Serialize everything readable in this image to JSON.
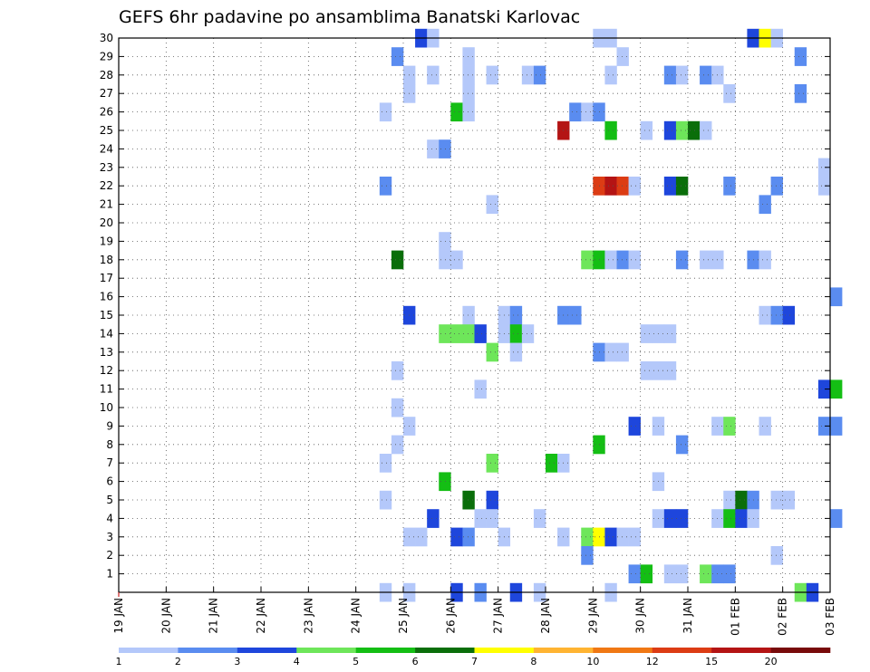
{
  "chart_data": {
    "type": "heatmap",
    "title": "GEFS 6hr padavine po ansamblima Banatski Karlovac",
    "x_tick_labels": [
      "19 JAN",
      "20 JAN",
      "21 JAN",
      "22 JAN",
      "23 JAN",
      "24 JAN",
      "25 JAN",
      "26 JAN",
      "27 JAN",
      "28 JAN",
      "29 JAN",
      "30 JAN",
      "31 JAN",
      "01 FEB",
      "02 FEB",
      "03 FEB"
    ],
    "y_tick_labels": [
      "1",
      "2",
      "3",
      "4",
      "5",
      "6",
      "7",
      "8",
      "9",
      "10",
      "11",
      "12",
      "13",
      "14",
      "15",
      "16",
      "17",
      "18",
      "19",
      "20",
      "21",
      "22",
      "23",
      "24",
      "25",
      "26",
      "27",
      "28",
      "29",
      "30"
    ],
    "xlim_days": [
      0,
      15
    ],
    "ylim": [
      0,
      30
    ],
    "time_step_hours": 6,
    "colorbar": {
      "labels": [
        "1",
        "2",
        "3",
        "4",
        "5",
        "6",
        "7",
        "8",
        "10",
        "12",
        "15",
        "20"
      ],
      "colors": [
        "#b4c8fa",
        "#5a8cf0",
        "#1e46dc",
        "#6ee65a",
        "#14be14",
        "#0a6e0a",
        "#ffff00",
        "#ffb432",
        "#f07814",
        "#dc3c14",
        "#b41414",
        "#780a0a"
      ]
    },
    "cells": [
      {
        "member": 30,
        "t": "2025-01-25T06",
        "level": 3
      },
      {
        "member": 30,
        "t": "2025-01-25T12",
        "level": 1
      },
      {
        "member": 30,
        "t": "2025-01-29T00",
        "level": 1
      },
      {
        "member": 30,
        "t": "2025-01-29T06",
        "level": 1
      },
      {
        "member": 30,
        "t": "2025-02-01T06",
        "level": 3
      },
      {
        "member": 30,
        "t": "2025-02-01T12",
        "level": 7
      },
      {
        "member": 30,
        "t": "2025-02-01T18",
        "level": 1
      },
      {
        "member": 29,
        "t": "2025-01-24T18",
        "level": 2
      },
      {
        "member": 29,
        "t": "2025-01-26T06",
        "level": 1
      },
      {
        "member": 29,
        "t": "2025-01-29T12",
        "level": 1
      },
      {
        "member": 29,
        "t": "2025-02-02T06",
        "level": 2
      },
      {
        "member": 28,
        "t": "2025-01-25T00",
        "level": 1
      },
      {
        "member": 28,
        "t": "2025-01-25T12",
        "level": 1
      },
      {
        "member": 28,
        "t": "2025-01-26T06",
        "level": 1
      },
      {
        "member": 28,
        "t": "2025-01-26T18",
        "level": 1
      },
      {
        "member": 28,
        "t": "2025-01-27T12",
        "level": 1
      },
      {
        "member": 28,
        "t": "2025-01-27T18",
        "level": 2
      },
      {
        "member": 28,
        "t": "2025-01-29T06",
        "level": 1
      },
      {
        "member": 28,
        "t": "2025-01-30T12",
        "level": 2
      },
      {
        "member": 28,
        "t": "2025-01-30T18",
        "level": 1
      },
      {
        "member": 28,
        "t": "2025-01-31T06",
        "level": 2
      },
      {
        "member": 28,
        "t": "2025-01-31T12",
        "level": 1
      },
      {
        "member": 27,
        "t": "2025-01-25T00",
        "level": 1
      },
      {
        "member": 27,
        "t": "2025-01-26T06",
        "level": 1
      },
      {
        "member": 27,
        "t": "2025-01-31T18",
        "level": 1
      },
      {
        "member": 27,
        "t": "2025-02-02T06",
        "level": 2
      },
      {
        "member": 26,
        "t": "2025-01-24T12",
        "level": 1
      },
      {
        "member": 26,
        "t": "2025-01-26T00",
        "level": 5
      },
      {
        "member": 26,
        "t": "2025-01-26T06",
        "level": 1
      },
      {
        "member": 26,
        "t": "2025-01-28T12",
        "level": 2
      },
      {
        "member": 26,
        "t": "2025-01-28T18",
        "level": 1
      },
      {
        "member": 26,
        "t": "2025-01-29T00",
        "level": 2
      },
      {
        "member": 25,
        "t": "2025-01-28T06",
        "level": 11
      },
      {
        "member": 25,
        "t": "2025-01-29T06",
        "level": 5
      },
      {
        "member": 25,
        "t": "2025-01-30T00",
        "level": 1
      },
      {
        "member": 25,
        "t": "2025-01-30T12",
        "level": 3
      },
      {
        "member": 25,
        "t": "2025-01-30T18",
        "level": 4
      },
      {
        "member": 25,
        "t": "2025-01-31T00",
        "level": 6
      },
      {
        "member": 25,
        "t": "2025-01-31T06",
        "level": 1
      },
      {
        "member": 24,
        "t": "2025-01-25T12",
        "level": 1
      },
      {
        "member": 24,
        "t": "2025-01-25T18",
        "level": 2
      },
      {
        "member": 23,
        "t": "2025-02-02T18",
        "level": 1
      },
      {
        "member": 22,
        "t": "2025-01-24T12",
        "level": 2
      },
      {
        "member": 22,
        "t": "2025-01-29T00",
        "level": 10
      },
      {
        "member": 22,
        "t": "2025-01-29T06",
        "level": 11
      },
      {
        "member": 22,
        "t": "2025-01-29T12",
        "level": 10
      },
      {
        "member": 22,
        "t": "2025-01-29T18",
        "level": 1
      },
      {
        "member": 22,
        "t": "2025-01-30T12",
        "level": 3
      },
      {
        "member": 22,
        "t": "2025-01-30T18",
        "level": 6
      },
      {
        "member": 22,
        "t": "2025-01-31T18",
        "level": 2
      },
      {
        "member": 22,
        "t": "2025-02-01T18",
        "level": 2
      },
      {
        "member": 22,
        "t": "2025-02-02T18",
        "level": 1
      },
      {
        "member": 21,
        "t": "2025-01-26T18",
        "level": 1
      },
      {
        "member": 21,
        "t": "2025-02-01T12",
        "level": 2
      },
      {
        "member": 19,
        "t": "2025-01-25T18",
        "level": 1
      },
      {
        "member": 18,
        "t": "2025-01-24T18",
        "level": 6
      },
      {
        "member": 18,
        "t": "2025-01-25T18",
        "level": 1
      },
      {
        "member": 18,
        "t": "2025-01-26T00",
        "level": 1
      },
      {
        "member": 18,
        "t": "2025-01-28T18",
        "level": 4
      },
      {
        "member": 18,
        "t": "2025-01-29T00",
        "level": 5
      },
      {
        "member": 18,
        "t": "2025-01-29T06",
        "level": 1
      },
      {
        "member": 18,
        "t": "2025-01-29T12",
        "level": 2
      },
      {
        "member": 18,
        "t": "2025-01-29T18",
        "level": 1
      },
      {
        "member": 18,
        "t": "2025-01-30T18",
        "level": 2
      },
      {
        "member": 18,
        "t": "2025-01-31T06",
        "level": 1
      },
      {
        "member": 18,
        "t": "2025-01-31T12",
        "level": 1
      },
      {
        "member": 18,
        "t": "2025-02-01T06",
        "level": 2
      },
      {
        "member": 18,
        "t": "2025-02-01T12",
        "level": 1
      },
      {
        "member": 16,
        "t": "2025-02-03T00",
        "level": 2
      },
      {
        "member": 15,
        "t": "2025-01-25T00",
        "level": 3
      },
      {
        "member": 15,
        "t": "2025-01-26T06",
        "level": 1
      },
      {
        "member": 15,
        "t": "2025-01-27T00",
        "level": 1
      },
      {
        "member": 15,
        "t": "2025-01-27T06",
        "level": 2
      },
      {
        "member": 15,
        "t": "2025-01-28T06",
        "level": 2
      },
      {
        "member": 15,
        "t": "2025-01-28T12",
        "level": 2
      },
      {
        "member": 15,
        "t": "2025-02-01T12",
        "level": 1
      },
      {
        "member": 15,
        "t": "2025-02-01T18",
        "level": 2
      },
      {
        "member": 15,
        "t": "2025-02-02T00",
        "level": 3
      },
      {
        "member": 14,
        "t": "2025-01-25T18",
        "level": 4
      },
      {
        "member": 14,
        "t": "2025-01-26T00",
        "level": 4
      },
      {
        "member": 14,
        "t": "2025-01-26T06",
        "level": 4
      },
      {
        "member": 14,
        "t": "2025-01-26T12",
        "level": 3
      },
      {
        "member": 14,
        "t": "2025-01-27T00",
        "level": 1
      },
      {
        "member": 14,
        "t": "2025-01-27T06",
        "level": 5
      },
      {
        "member": 14,
        "t": "2025-01-27T12",
        "level": 1
      },
      {
        "member": 14,
        "t": "2025-01-30T00",
        "level": 1
      },
      {
        "member": 14,
        "t": "2025-01-30T06",
        "level": 1
      },
      {
        "member": 14,
        "t": "2025-01-30T12",
        "level": 1
      },
      {
        "member": 13,
        "t": "2025-01-26T18",
        "level": 4
      },
      {
        "member": 13,
        "t": "2025-01-27T06",
        "level": 1
      },
      {
        "member": 13,
        "t": "2025-01-29T00",
        "level": 2
      },
      {
        "member": 13,
        "t": "2025-01-29T06",
        "level": 1
      },
      {
        "member": 13,
        "t": "2025-01-29T12",
        "level": 1
      },
      {
        "member": 12,
        "t": "2025-01-24T18",
        "level": 1
      },
      {
        "member": 12,
        "t": "2025-01-30T00",
        "level": 1
      },
      {
        "member": 12,
        "t": "2025-01-30T06",
        "level": 1
      },
      {
        "member": 12,
        "t": "2025-01-30T12",
        "level": 1
      },
      {
        "member": 11,
        "t": "2025-01-26T12",
        "level": 1
      },
      {
        "member": 11,
        "t": "2025-02-02T18",
        "level": 3
      },
      {
        "member": 11,
        "t": "2025-02-03T00",
        "level": 5
      },
      {
        "member": 10,
        "t": "2025-01-24T18",
        "level": 1
      },
      {
        "member": 9,
        "t": "2025-01-25T00",
        "level": 1
      },
      {
        "member": 9,
        "t": "2025-01-29T18",
        "level": 3
      },
      {
        "member": 9,
        "t": "2025-01-30T06",
        "level": 1
      },
      {
        "member": 9,
        "t": "2025-01-31T12",
        "level": 1
      },
      {
        "member": 9,
        "t": "2025-01-31T18",
        "level": 4
      },
      {
        "member": 9,
        "t": "2025-02-01T12",
        "level": 1
      },
      {
        "member": 9,
        "t": "2025-02-02T18",
        "level": 2
      },
      {
        "member": 9,
        "t": "2025-02-03T00",
        "level": 2
      },
      {
        "member": 8,
        "t": "2025-01-24T18",
        "level": 1
      },
      {
        "member": 8,
        "t": "2025-01-29T00",
        "level": 5
      },
      {
        "member": 8,
        "t": "2025-01-30T18",
        "level": 2
      },
      {
        "member": 7,
        "t": "2025-01-24T12",
        "level": 1
      },
      {
        "member": 7,
        "t": "2025-01-26T18",
        "level": 4
      },
      {
        "member": 7,
        "t": "2025-01-28T00",
        "level": 5
      },
      {
        "member": 7,
        "t": "2025-01-28T06",
        "level": 1
      },
      {
        "member": 6,
        "t": "2025-01-25T18",
        "level": 5
      },
      {
        "member": 6,
        "t": "2025-01-30T06",
        "level": 1
      },
      {
        "member": 5,
        "t": "2025-01-24T12",
        "level": 1
      },
      {
        "member": 5,
        "t": "2025-01-26T06",
        "level": 6
      },
      {
        "member": 5,
        "t": "2025-01-26T18",
        "level": 3
      },
      {
        "member": 5,
        "t": "2025-01-31T18",
        "level": 1
      },
      {
        "member": 5,
        "t": "2025-02-01T00",
        "level": 6
      },
      {
        "member": 5,
        "t": "2025-02-01T06",
        "level": 2
      },
      {
        "member": 5,
        "t": "2025-02-01T18",
        "level": 1
      },
      {
        "member": 5,
        "t": "2025-02-02T00",
        "level": 1
      },
      {
        "member": 4,
        "t": "2025-01-25T12",
        "level": 3
      },
      {
        "member": 4,
        "t": "2025-01-26T12",
        "level": 1
      },
      {
        "member": 4,
        "t": "2025-01-26T18",
        "level": 1
      },
      {
        "member": 4,
        "t": "2025-01-27T18",
        "level": 1
      },
      {
        "member": 4,
        "t": "2025-01-30T06",
        "level": 1
      },
      {
        "member": 4,
        "t": "2025-01-30T12",
        "level": 3
      },
      {
        "member": 4,
        "t": "2025-01-30T18",
        "level": 3
      },
      {
        "member": 4,
        "t": "2025-01-31T12",
        "level": 1
      },
      {
        "member": 4,
        "t": "2025-01-31T18",
        "level": 5
      },
      {
        "member": 4,
        "t": "2025-02-01T00",
        "level": 3
      },
      {
        "member": 4,
        "t": "2025-02-01T06",
        "level": 1
      },
      {
        "member": 4,
        "t": "2025-02-03T00",
        "level": 2
      },
      {
        "member": 3,
        "t": "2025-01-25T00",
        "level": 1
      },
      {
        "member": 3,
        "t": "2025-01-25T06",
        "level": 1
      },
      {
        "member": 3,
        "t": "2025-01-26T00",
        "level": 3
      },
      {
        "member": 3,
        "t": "2025-01-26T06",
        "level": 2
      },
      {
        "member": 3,
        "t": "2025-01-27T00",
        "level": 1
      },
      {
        "member": 3,
        "t": "2025-01-28T06",
        "level": 1
      },
      {
        "member": 3,
        "t": "2025-01-28T18",
        "level": 4
      },
      {
        "member": 3,
        "t": "2025-01-29T00",
        "level": 7
      },
      {
        "member": 3,
        "t": "2025-01-29T06",
        "level": 3
      },
      {
        "member": 3,
        "t": "2025-01-29T12",
        "level": 1
      },
      {
        "member": 3,
        "t": "2025-01-29T18",
        "level": 1
      },
      {
        "member": 2,
        "t": "2025-01-28T18",
        "level": 2
      },
      {
        "member": 2,
        "t": "2025-02-01T18",
        "level": 1
      },
      {
        "member": 1,
        "t": "2025-01-29T18",
        "level": 2
      },
      {
        "member": 1,
        "t": "2025-01-30T00",
        "level": 5
      },
      {
        "member": 1,
        "t": "2025-01-30T12",
        "level": 1
      },
      {
        "member": 1,
        "t": "2025-01-30T18",
        "level": 1
      },
      {
        "member": 1,
        "t": "2025-01-31T06",
        "level": 4
      },
      {
        "member": 1,
        "t": "2025-01-31T12",
        "level": 2
      },
      {
        "member": 1,
        "t": "2025-01-31T18",
        "level": 2
      },
      {
        "member": 0,
        "t": "2025-01-24T12",
        "level": 1
      },
      {
        "member": 0,
        "t": "2025-01-25T00",
        "level": 1
      },
      {
        "member": 0,
        "t": "2025-01-26T00",
        "level": 3
      },
      {
        "member": 0,
        "t": "2025-01-26T12",
        "level": 2
      },
      {
        "member": 0,
        "t": "2025-01-27T06",
        "level": 3
      },
      {
        "member": 0,
        "t": "2025-01-27T18",
        "level": 1
      },
      {
        "member": 0,
        "t": "2025-01-29T06",
        "level": 1
      },
      {
        "member": 0,
        "t": "2025-02-02T06",
        "level": 4
      },
      {
        "member": 0,
        "t": "2025-02-02T12",
        "level": 3
      }
    ]
  }
}
